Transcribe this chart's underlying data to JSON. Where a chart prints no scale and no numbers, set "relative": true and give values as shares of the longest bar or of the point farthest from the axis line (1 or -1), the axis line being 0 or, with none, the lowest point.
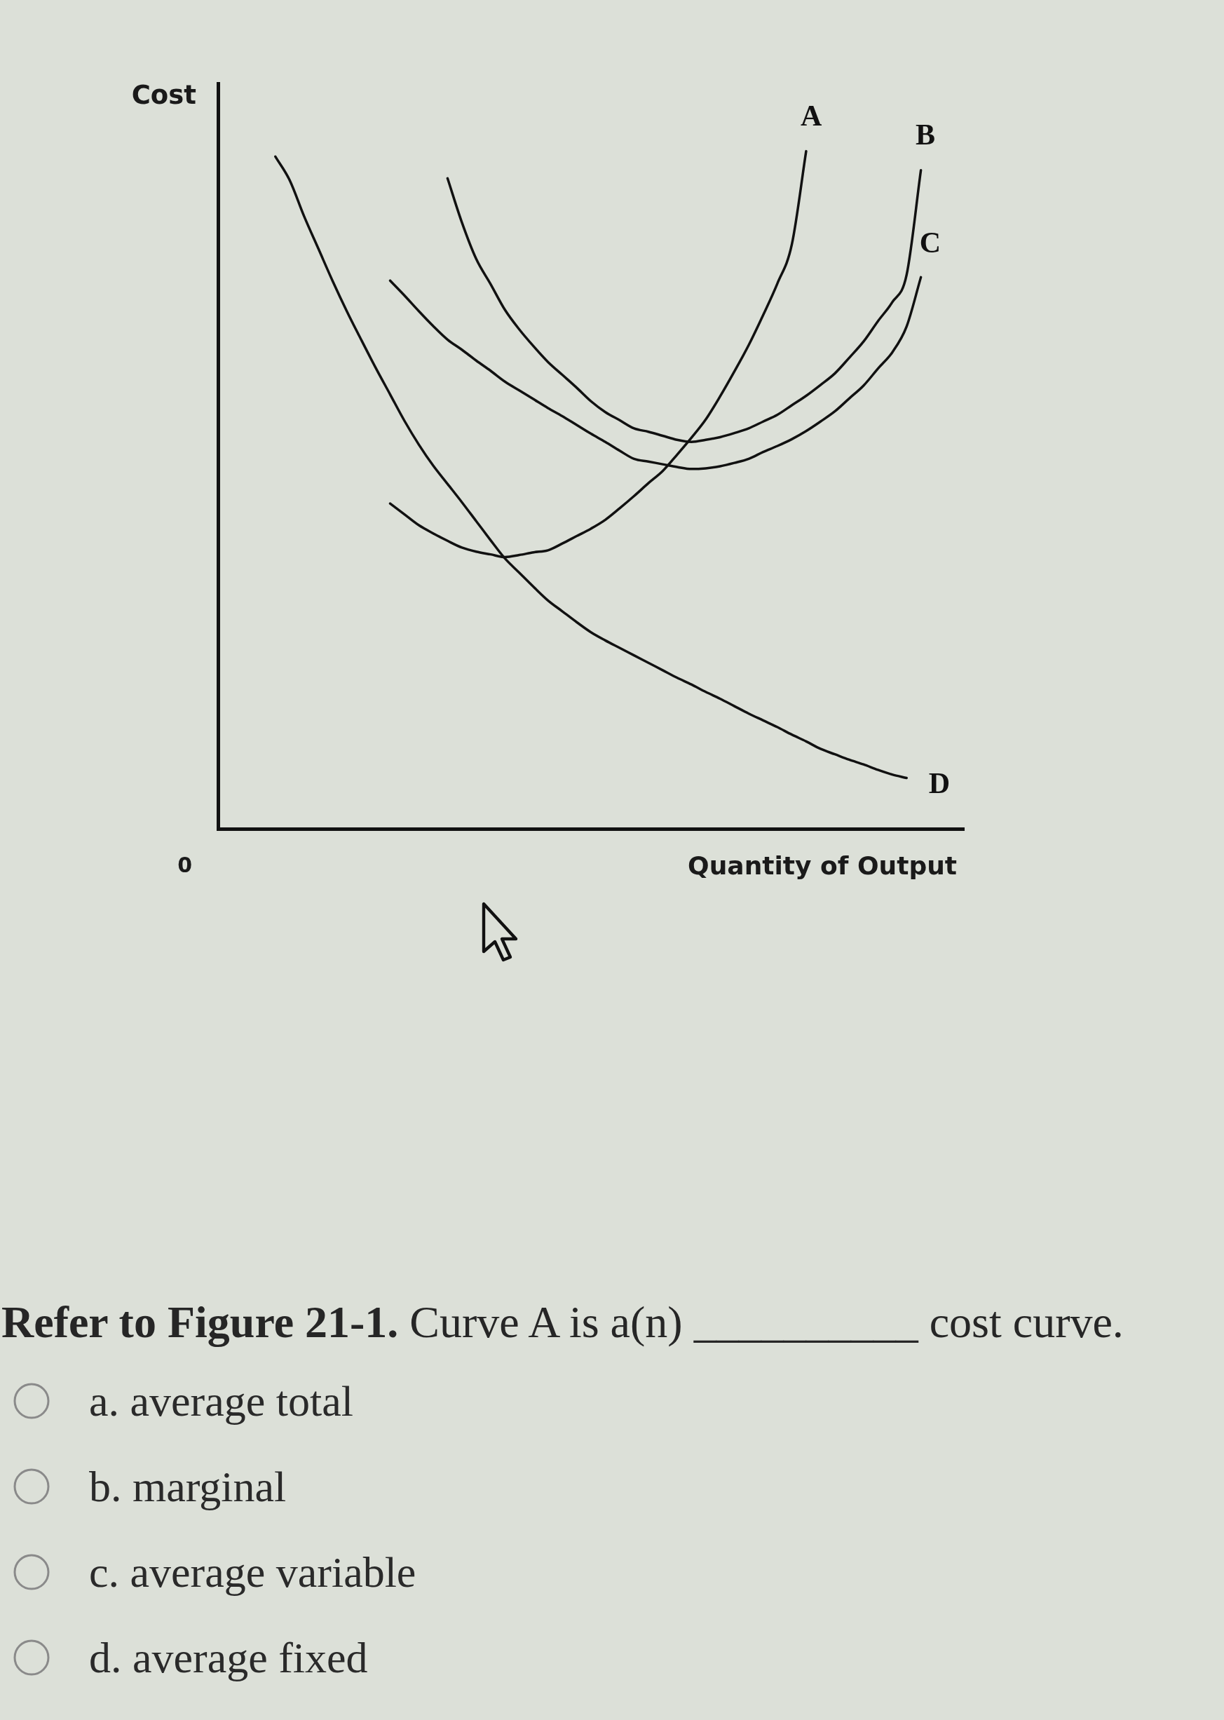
{
  "chart_data": {
    "type": "line",
    "relative": true,
    "xlabel": "Quantity of Output",
    "ylabel": "Cost",
    "categories": [
      null,
      null,
      null,
      null,
      null,
      null,
      null,
      null,
      null,
      null,
      null,
      null,
      null,
      null,
      null,
      null,
      null,
      null,
      null,
      null,
      null,
      null,
      null,
      null,
      null,
      null,
      null,
      null,
      null,
      null,
      null,
      null,
      null,
      null,
      null,
      null,
      null,
      null,
      null,
      null,
      null,
      null,
      null,
      null,
      null,
      null,
      null,
      null,
      null,
      null,
      null,
      null,
      null
    ],
    "series": [
      {
        "name": "A",
        "color": "#111111",
        "values": [
          null,
          null,
          null,
          null,
          null,
          null,
          null,
          null,
          null,
          null,
          null,
          null,
          0.48,
          0.464,
          0.448,
          0.436,
          0.425,
          0.415,
          0.409,
          0.405,
          0.401,
          0.404,
          0.408,
          0.411,
          0.421,
          0.432,
          0.443,
          0.456,
          0.473,
          0.491,
          0.51,
          0.528,
          0.552,
          0.577,
          0.604,
          0.638,
          0.675,
          0.714,
          0.758,
          0.805,
          0.862,
          1,
          null,
          null,
          null,
          null,
          null,
          null,
          null,
          null,
          null,
          null,
          null
        ]
      },
      {
        "name": "B",
        "color": "#111111",
        "values": [
          null,
          null,
          null,
          null,
          null,
          null,
          null,
          null,
          null,
          null,
          null,
          null,
          null,
          null,
          null,
          null,
          0.96,
          0.895,
          0.841,
          0.804,
          0.766,
          0.737,
          0.712,
          0.689,
          0.67,
          0.651,
          0.631,
          0.615,
          0.603,
          0.591,
          0.586,
          0.58,
          0.574,
          0.571,
          0.574,
          0.578,
          0.584,
          0.591,
          0.601,
          0.611,
          0.625,
          0.639,
          0.655,
          0.672,
          0.695,
          0.719,
          0.749,
          0.777,
          0.817,
          0.972,
          null,
          null,
          null
        ]
      },
      {
        "name": "C",
        "color": "#111111",
        "values": [
          null,
          null,
          null,
          null,
          null,
          null,
          null,
          null,
          null,
          null,
          null,
          null,
          0.809,
          0.787,
          0.764,
          0.742,
          0.722,
          0.707,
          0.691,
          0.676,
          0.66,
          0.647,
          0.634,
          0.621,
          0.609,
          0.596,
          0.583,
          0.571,
          0.558,
          0.546,
          0.542,
          0.538,
          0.534,
          0.531,
          0.532,
          0.535,
          0.54,
          0.546,
          0.556,
          0.565,
          0.575,
          0.587,
          0.601,
          0.616,
          0.635,
          0.654,
          0.679,
          0.703,
          0.741,
          0.814,
          null,
          null,
          null
        ]
      },
      {
        "name": "D",
        "color": "#111111",
        "values": [
          null,
          null,
          null,
          null,
          0.992,
          0.957,
          0.904,
          0.856,
          0.808,
          0.763,
          0.721,
          0.68,
          0.641,
          0.602,
          0.567,
          0.536,
          0.509,
          0.482,
          0.454,
          0.426,
          0.399,
          0.378,
          0.357,
          0.337,
          0.321,
          0.305,
          0.29,
          0.278,
          0.267,
          0.256,
          0.245,
          0.234,
          0.223,
          0.213,
          0.202,
          0.192,
          0.181,
          0.17,
          0.16,
          0.15,
          0.139,
          0.129,
          0.118,
          0.11,
          0.102,
          0.095,
          0.087,
          0.08,
          0.075,
          null,
          null,
          null,
          null
        ]
      }
    ],
    "annotations": [
      "0",
      "Refer to Figure 21-1.",
      "Curve A is a(n) __________ cost curve.",
      "a. average total",
      "b. marginal",
      "c. average variable",
      "d. average fixed"
    ]
  }
}
